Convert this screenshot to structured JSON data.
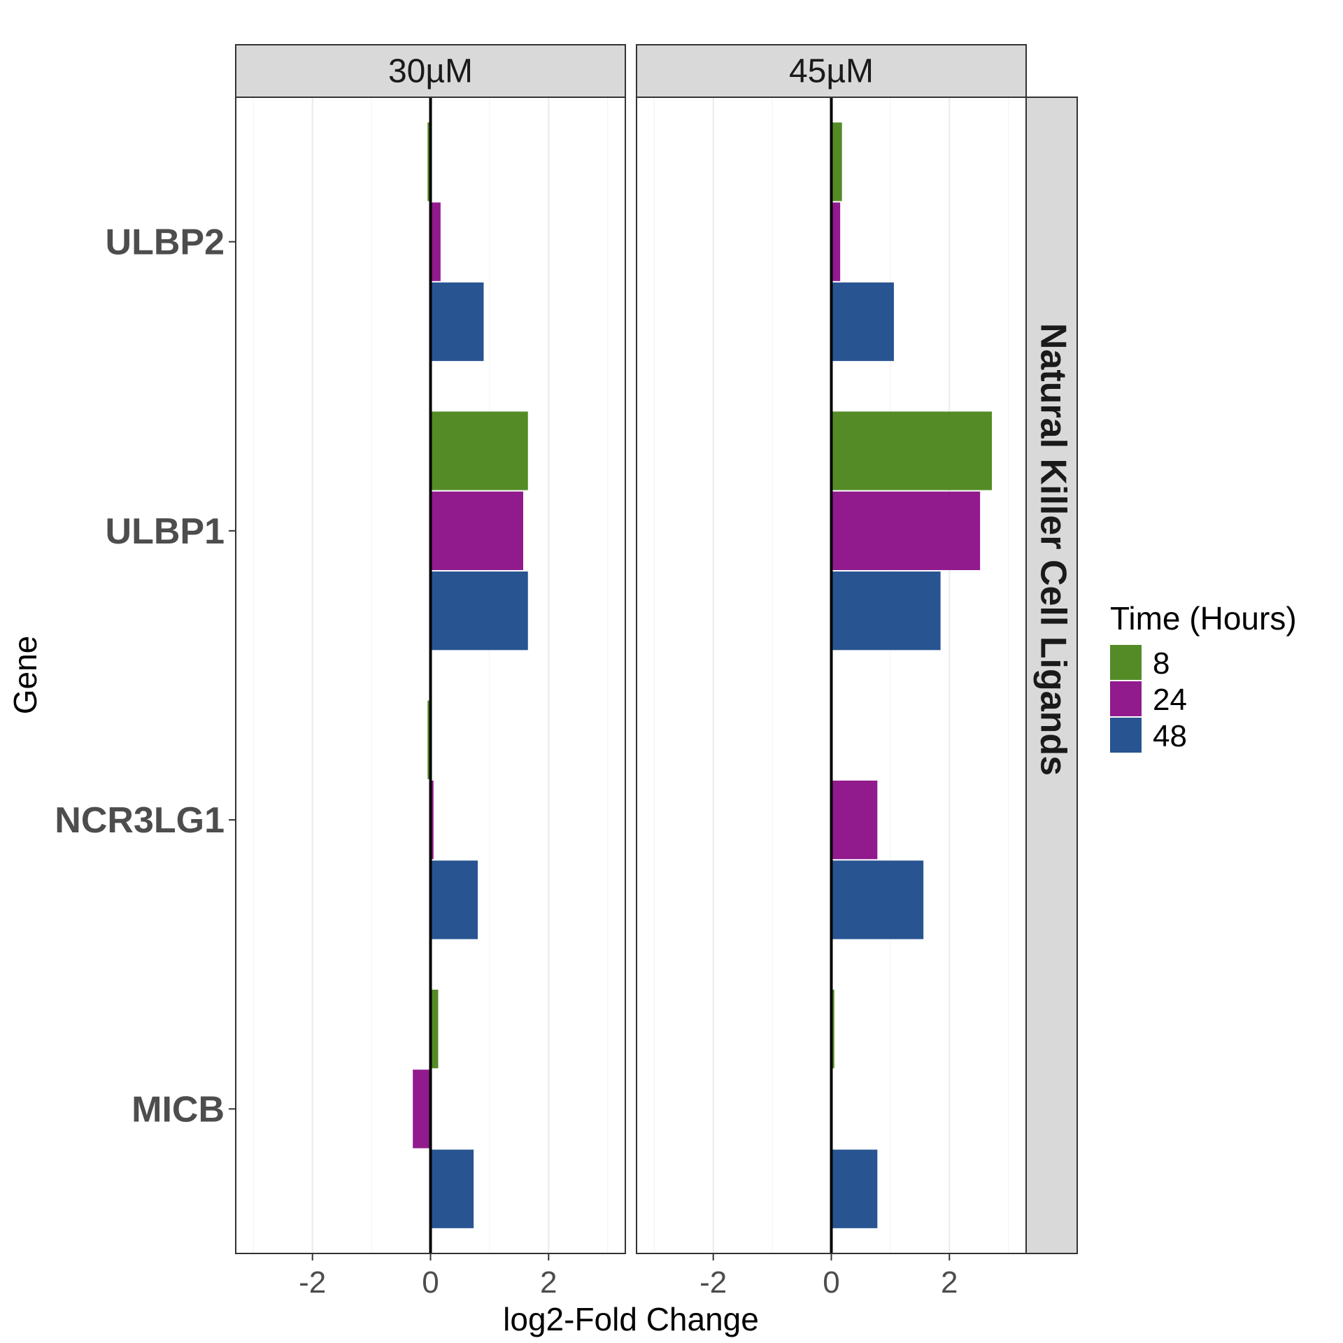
{
  "chart_data": {
    "type": "bar",
    "orientation": "horizontal",
    "facet_columns": [
      "30µM",
      "45µM"
    ],
    "facet_row": "Natural Killer Cell Ligands",
    "categories": [
      "ULBP2",
      "ULBP1",
      "NCR3LG1",
      "MICB"
    ],
    "xlabel": "log2-Fold Change",
    "ylabel": "Gene",
    "xlim": [
      -3.3,
      3.3
    ],
    "x_ticks": [
      -2,
      0,
      2
    ],
    "grid": true,
    "legend": {
      "title": "Time (Hours)",
      "placement": "right",
      "entries": [
        "8",
        "24",
        "48"
      ]
    },
    "colors": {
      "8": "#548b27",
      "24": "#911a8d",
      "48": "#285491"
    },
    "panels": [
      {
        "facet": "30µM",
        "series": [
          {
            "name": "8",
            "values": [
              -0.05,
              1.65,
              -0.05,
              0.13
            ]
          },
          {
            "name": "24",
            "values": [
              0.17,
              1.57,
              0.05,
              -0.3
            ]
          },
          {
            "name": "48",
            "values": [
              0.9,
              1.65,
              0.8,
              0.73
            ]
          }
        ]
      },
      {
        "facet": "45µM",
        "series": [
          {
            "name": "8",
            "values": [
              0.18,
              2.72,
              0.0,
              0.05
            ]
          },
          {
            "name": "24",
            "values": [
              0.15,
              2.52,
              0.78,
              0.0
            ]
          },
          {
            "name": "48",
            "values": [
              1.06,
              1.85,
              1.56,
              0.78
            ]
          }
        ]
      }
    ]
  }
}
